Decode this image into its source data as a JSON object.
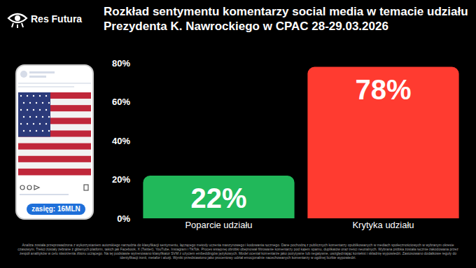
{
  "brand": "Res Futura",
  "reach_label": "zasięg: 16MLN",
  "footnote": "Analiza została przeprowadzona z wykorzystaniem autorskiego narzędzia do klasyfikacji sentymentu, łączącego metody uczenia maszynowego i kodowania ręcznego. Dane pochodzą z publicznych komentarzy opublikowanych w mediach społecznościowych w wybranym okresie czasowym. Treści zostały zebrane z głównych platform, takich jak Facebook, X (Twitter), YouTube, Instagram i TikTok. Proces wstępnej obróbki obejmował filtrowanie komentarzy pod kątem spamu, duplikatów oraz treści neutralnych. Wybrana próbka została ręcznie zakodowana przez zespół analityków w celu stworzenia zbioru uczącego. Na tej podstawie wytrenowano klasyfikator SVM z użyciem embeddingów językowych. Model oceniał komentarze jako pozytywne lub negatywne, uwzględniając kontekst i składnię wypowiedzi. Zastosowano dodatkowe reguły do identyfikacji ironii, metafor i aluzji. Wyniki przedstawiono jako procentowy udział emocjonalnie nacechowanych komentarzy w ogólnej liczbie wypowiedzi.",
  "chart_data": {
    "type": "bar",
    "title": "Rozkład sentymentu komentarzy social media w temacie udziału Prezydenta K. Nawrockiego w CPAC 28-29.03.2026",
    "categories": [
      "Poparcie udziału",
      "Krytyka udziału"
    ],
    "values": [
      22,
      78
    ],
    "value_labels": [
      "22%",
      "78%"
    ],
    "colors": [
      "#21b85a",
      "#ff3b30"
    ],
    "ylim": [
      0,
      80
    ],
    "yticks": [
      {
        "value": 0,
        "label": "0%"
      },
      {
        "value": 20,
        "label": "20%"
      },
      {
        "value": 40,
        "label": "40%"
      },
      {
        "value": 60,
        "label": "60%"
      },
      {
        "value": 80,
        "label": "80%"
      }
    ],
    "grid": false,
    "data_labels": true
  }
}
